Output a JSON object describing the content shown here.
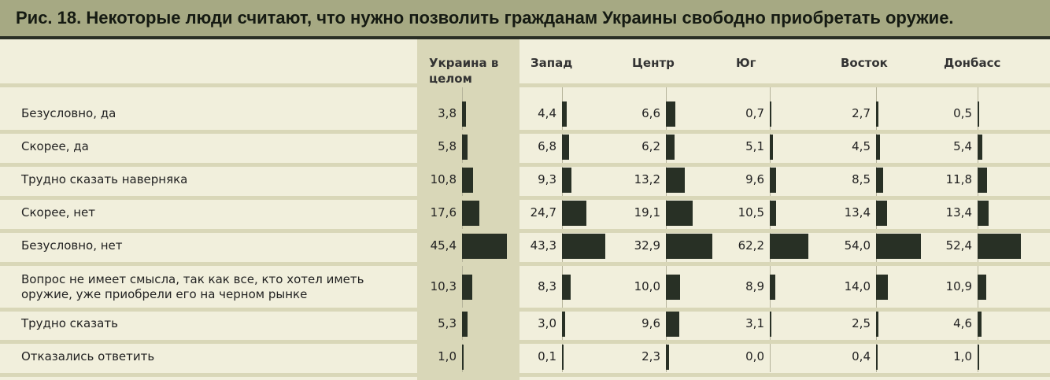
{
  "chart_data": {
    "type": "table",
    "title": "Рис. 18. Некоторые люди считают, что нужно позволить гражданам Украины свободно приобретать оружие.",
    "columns": [
      "Украина в целом",
      "Запад",
      "Центр",
      "Юг",
      "Восток",
      "Донбасс"
    ],
    "rows": [
      {
        "label": "Безусловно, да",
        "values": [
          "3,8",
          "4,4",
          "6,6",
          "0,7",
          "2,7",
          "0,5"
        ]
      },
      {
        "label": "Скорее, да",
        "values": [
          "5,8",
          "6,8",
          "6,2",
          "5,1",
          "4,5",
          "5,4"
        ]
      },
      {
        "label": "Трудно сказать наверняка",
        "values": [
          "10,8",
          "9,3",
          "13,2",
          "9,6",
          "8,5",
          "11,8"
        ]
      },
      {
        "label": "Скорее, нет",
        "values": [
          "17,6",
          "24,7",
          "19,1",
          "10,5",
          "13,4",
          "13,4"
        ]
      },
      {
        "label": "Безусловно, нет",
        "values": [
          "45,4",
          "43,3",
          "32,9",
          "62,2",
          "54,0",
          "52,4"
        ]
      },
      {
        "label": "Вопрос не имеет смысла, так как все, кто хотел иметь оружие, уже приобрели его на черном рынке",
        "values": [
          "10,3",
          "8,3",
          "10,0",
          "8,9",
          "14,0",
          "10,9"
        ]
      },
      {
        "label": "Трудно сказать",
        "values": [
          "5,3",
          "3,0",
          "9,6",
          "3,1",
          "2,5",
          "4,6"
        ]
      },
      {
        "label": "Отказались ответить",
        "values": [
          "1,0",
          "0,1",
          "2,3",
          "0,0",
          "0,4",
          "1,0"
        ]
      }
    ],
    "colors": {
      "bar": "#283025",
      "header": "#a6a983",
      "highlight": "#d9d7b8",
      "background": "#f1efdc"
    }
  }
}
